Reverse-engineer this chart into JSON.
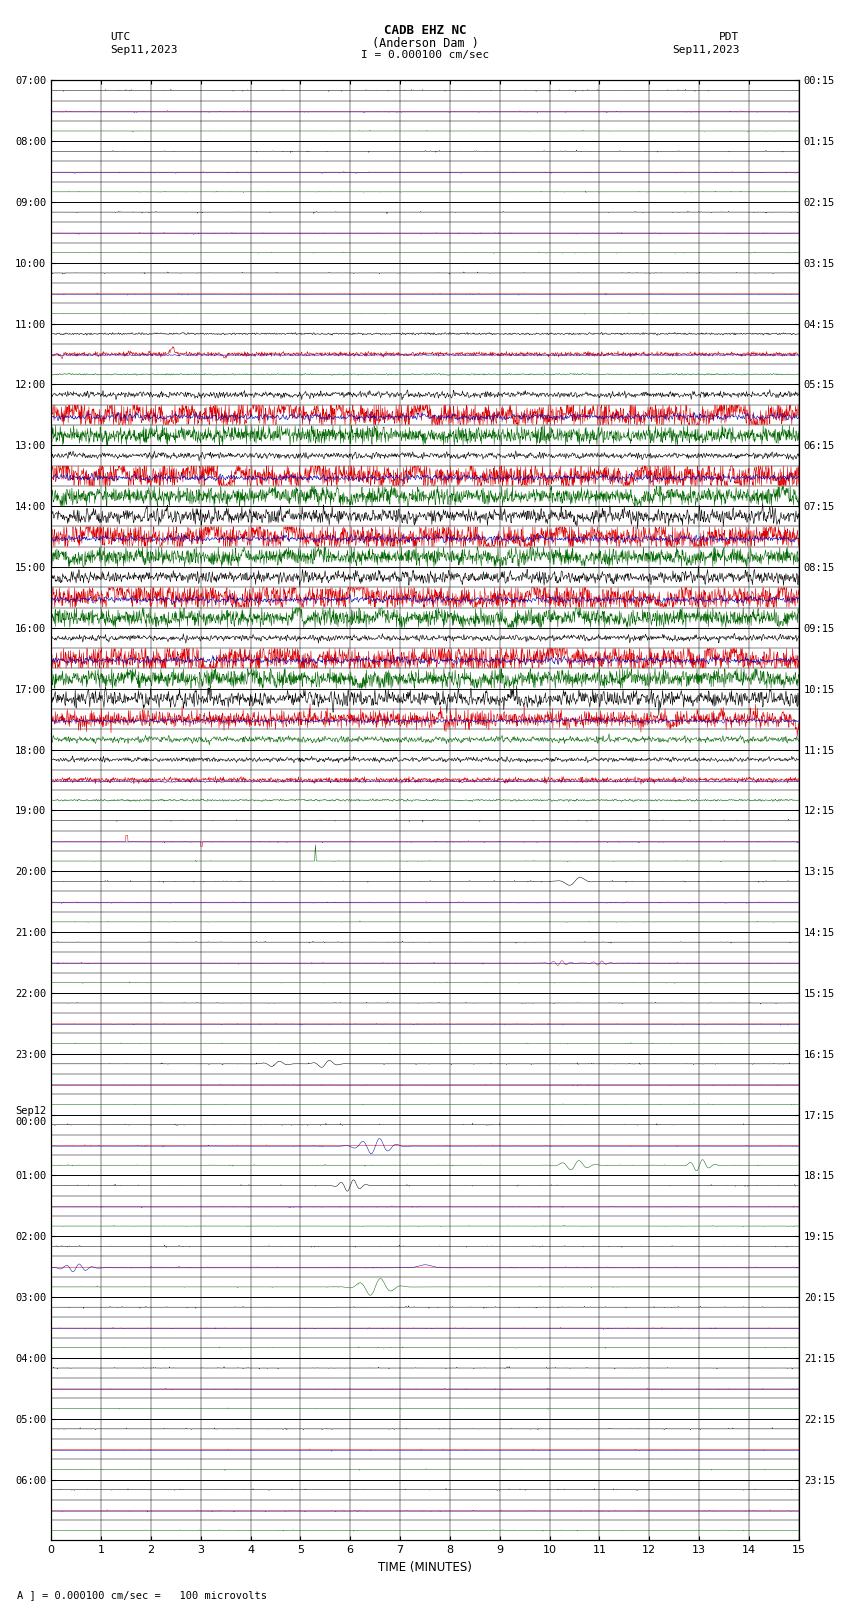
{
  "title_line1": "CADB EHZ NC",
  "title_line2": "(Anderson Dam )",
  "scale_text": "I = 0.000100 cm/sec",
  "left_label": "UTC",
  "left_date": "Sep11,2023",
  "right_label": "PDT",
  "right_date": "Sep11,2023",
  "xlabel": "TIME (MINUTES)",
  "bottom_note": "A ] = 0.000100 cm/sec =   100 microvolts",
  "xlim": [
    0,
    15
  ],
  "left_times": [
    "07:00",
    "08:00",
    "09:00",
    "10:00",
    "11:00",
    "12:00",
    "13:00",
    "14:00",
    "15:00",
    "16:00",
    "17:00",
    "18:00",
    "19:00",
    "20:00",
    "21:00",
    "22:00",
    "23:00",
    "Sep12\n00:00",
    "01:00",
    "02:00",
    "03:00",
    "04:00",
    "05:00",
    "06:00"
  ],
  "right_times": [
    "00:15",
    "01:15",
    "02:15",
    "03:15",
    "04:15",
    "05:15",
    "06:15",
    "07:15",
    "08:15",
    "09:15",
    "10:15",
    "11:15",
    "12:15",
    "13:15",
    "14:15",
    "15:15",
    "16:15",
    "17:15",
    "18:15",
    "19:15",
    "20:15",
    "21:15",
    "22:15",
    "23:15"
  ],
  "bg_color": "#ffffff",
  "colors": {
    "black": "#000000",
    "red": "#dd0000",
    "green": "#006600",
    "blue": "#0000bb"
  }
}
